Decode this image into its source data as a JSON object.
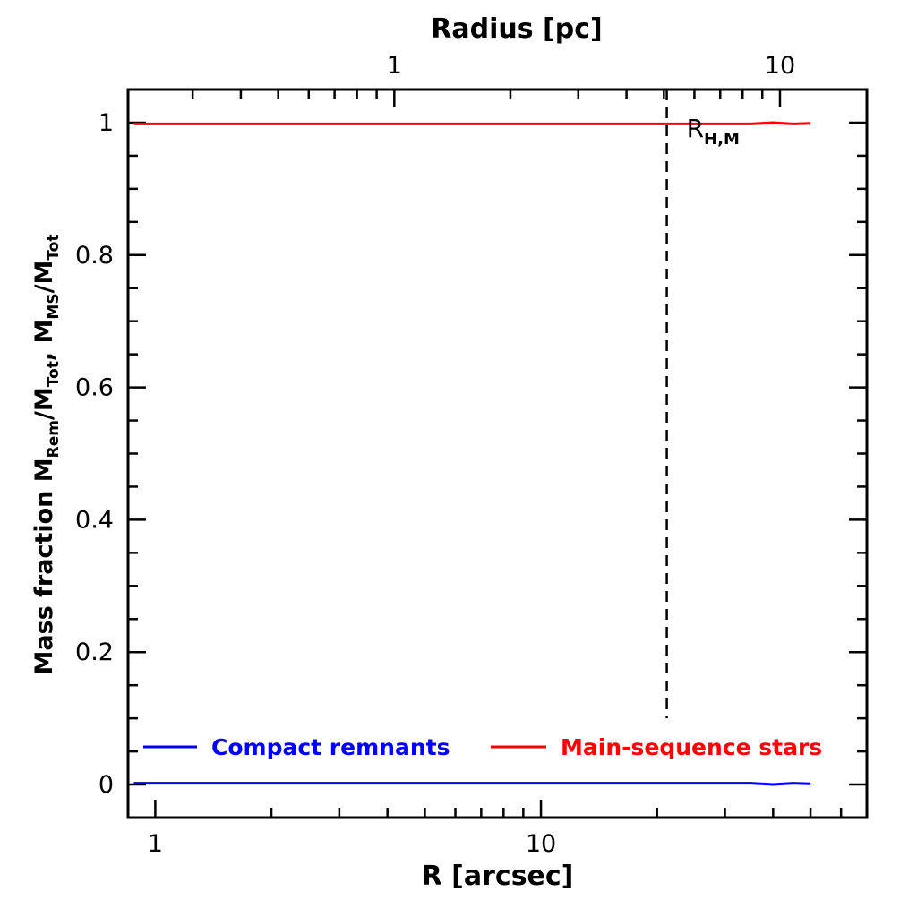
{
  "chart_data": {
    "type": "line",
    "xlabel": "R [arcsec]",
    "x2label": "Radius [pc]",
    "ylabel_parts": {
      "prefix": "Mass fraction  M",
      "sub1": "Rem",
      "mid1": "/M",
      "sub2": "Tot",
      "mid2": ",  M",
      "sub3": "MS",
      "mid3": "/M",
      "sub4": "Tot"
    },
    "xscale": "log",
    "xlim": [
      0.85,
      70
    ],
    "ylim": [
      -0.05,
      1.05
    ],
    "x_ticks": [
      {
        "value": 1,
        "label": "1"
      },
      {
        "value": 10,
        "label": "10"
      }
    ],
    "x2_ticks": [
      {
        "value": 1,
        "label": "1"
      },
      {
        "value": 10,
        "label": "10"
      }
    ],
    "x2_pc_per_arcsec": 0.24,
    "y_ticks": [
      {
        "value": 0,
        "label": "0"
      },
      {
        "value": 0.2,
        "label": "0.2"
      },
      {
        "value": 0.4,
        "label": "0.4"
      },
      {
        "value": 0.6,
        "label": "0.6"
      },
      {
        "value": 0.8,
        "label": "0.8"
      },
      {
        "value": 1,
        "label": "1"
      }
    ],
    "series": [
      {
        "name": "Compact remnants",
        "color": "#0000ff",
        "x": [
          0.88,
          2,
          5,
          10,
          20,
          35,
          40,
          45,
          50
        ],
        "y": [
          0.002,
          0.002,
          0.002,
          0.002,
          0.002,
          0.002,
          0.0,
          0.002,
          0.001
        ]
      },
      {
        "name": "Main-sequence stars",
        "color": "#ff0000",
        "x": [
          0.88,
          2,
          5,
          10,
          20,
          35,
          40,
          45,
          50
        ],
        "y": [
          0.998,
          0.998,
          0.998,
          0.998,
          0.998,
          0.998,
          1.0,
          0.998,
          0.999
        ]
      }
    ],
    "vline": {
      "x": 21.2,
      "label_main": "R",
      "label_sub": "H,M",
      "style": "dashed",
      "y_top": 1.05,
      "y_bottom": 0.1
    },
    "legend_placement": "bottom, inside plot, horizontal"
  }
}
